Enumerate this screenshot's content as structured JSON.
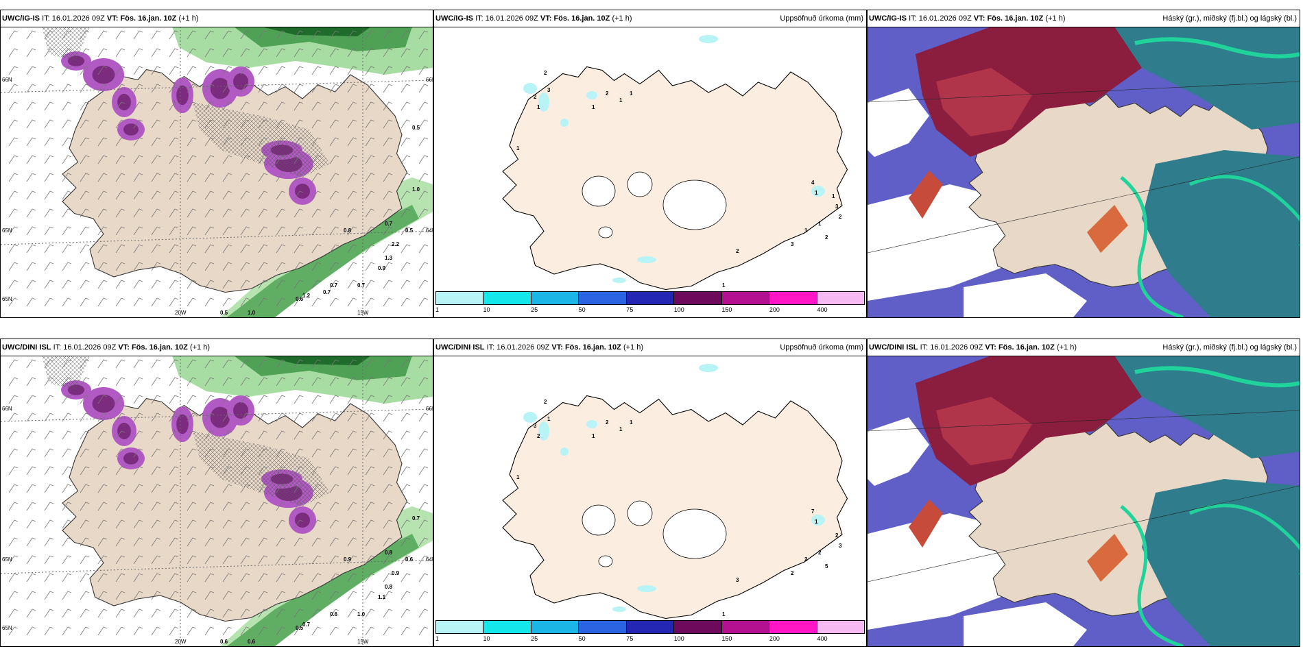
{
  "rows": [
    {
      "model": "UWC/IG-IS",
      "it_label": "IT:",
      "it_value": "16.01.2026 09Z",
      "vt_label": "VT:",
      "vt_value": "Fös. 16.jan. 10Z",
      "lead": "(+1 h)",
      "left_axis": [
        "66N",
        "65N",
        "65N",
        "20W",
        "15W",
        "64N",
        "66N"
      ],
      "left_values": [
        "0.5",
        "1.0",
        "0.6",
        "0.7",
        "0.8",
        "0.7",
        "1.0",
        "0.5",
        "0.7",
        "2.2",
        "1.3",
        "0.9",
        "1.2",
        "0.7",
        "0.5"
      ],
      "center_values": [
        "2",
        "3",
        "2",
        "1",
        "1",
        "1",
        "2",
        "1",
        "1",
        "4",
        "1",
        "3",
        "2",
        "1",
        "2",
        "2",
        "1",
        "2",
        "3",
        "1",
        "1"
      ]
    },
    {
      "model": "UWC/DINI ISL",
      "it_label": "IT:",
      "it_value": "16.01.2026 09Z",
      "vt_label": "VT:",
      "vt_value": "Fös. 16.jan. 10Z",
      "lead": "(+1 h)",
      "left_axis": [
        "66N",
        "65N",
        "65N",
        "20W",
        "15W",
        "64N",
        "66N"
      ],
      "left_values": [
        "0.6",
        "0.6",
        "0.5",
        "0.6",
        "0.9",
        "0.8",
        "0.7",
        "0.6",
        "1.0",
        "0.9",
        "0.8",
        "1.1",
        "0.7"
      ],
      "center_values": [
        "2",
        "1",
        "3",
        "2",
        "1",
        "1",
        "2",
        "1",
        "1",
        "7",
        "1",
        "2",
        "3",
        "2",
        "5",
        "3",
        "1",
        "3",
        "2",
        "2"
      ]
    }
  ],
  "center_title": "Uppsöfnuð úrkoma (mm)",
  "right_title": "Háský (gr.), miðský (fj.bl.) og lágský (bl.)",
  "legend": {
    "ticks": [
      "1",
      "10",
      "25",
      "50",
      "75",
      "100",
      "150",
      "200",
      "400"
    ],
    "colors": [
      "#b8f4f6",
      "#14e6ea",
      "#1bb5e6",
      "#2c63e3",
      "#2426b4",
      "#6d0a5c",
      "#b3118f",
      "#ff16c4",
      "#f7b9f1"
    ]
  }
}
